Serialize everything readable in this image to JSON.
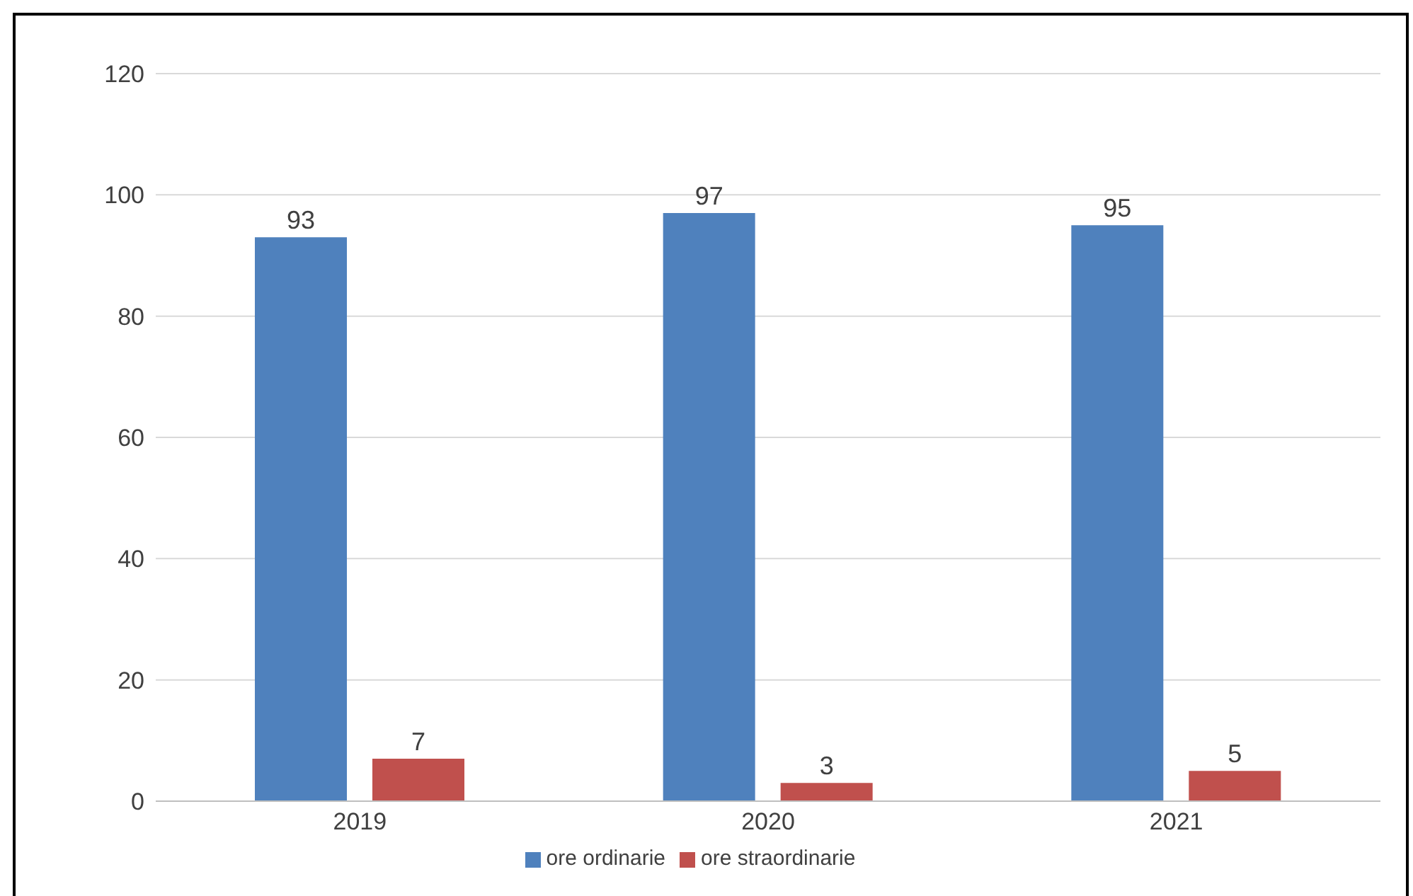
{
  "chart_data": {
    "type": "bar",
    "categories": [
      "2019",
      "2020",
      "2021"
    ],
    "series": [
      {
        "name": "ore ordinarie",
        "color": "#4f81bd",
        "values": [
          93,
          97,
          95
        ]
      },
      {
        "name": "ore straordinarie",
        "color": "#c0504d",
        "values": [
          7,
          3,
          5
        ]
      }
    ],
    "ylim": [
      0,
      120
    ],
    "yticks": [
      0,
      20,
      40,
      60,
      80,
      100,
      120
    ],
    "grid": "y",
    "legend": "bottom",
    "data_labels": true
  }
}
